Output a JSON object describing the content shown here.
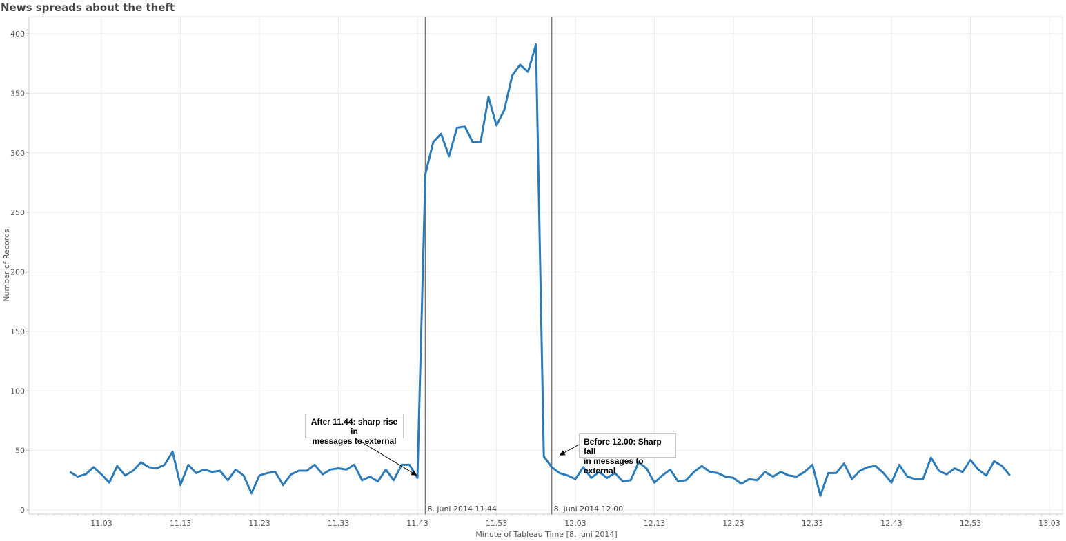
{
  "title": "News spreads about the theft",
  "chart_data": {
    "type": "line",
    "title": "News spreads about the theft",
    "xlabel": "Minute of Tableau Time [8. juni 2014]",
    "ylabel": "Number of Records",
    "ylim": [
      0,
      410
    ],
    "yticks": [
      0,
      50,
      100,
      150,
      200,
      250,
      300,
      350,
      400
    ],
    "xlim_minutes": [
      "10.55",
      "13.05"
    ],
    "xticks": [
      "11.03",
      "11.13",
      "11.23",
      "11.33",
      "11.43",
      "11.53",
      "12.03",
      "12.13",
      "12.23",
      "12.33",
      "12.43",
      "12.53",
      "13.03"
    ],
    "grid": true,
    "line_color": "#2b7bba",
    "x": [
      "10.59",
      "11.00",
      "11.01",
      "11.02",
      "11.03",
      "11.04",
      "11.05",
      "11.06",
      "11.07",
      "11.08",
      "11.09",
      "11.10",
      "11.11",
      "11.12",
      "11.13",
      "11.14",
      "11.15",
      "11.16",
      "11.17",
      "11.18",
      "11.19",
      "11.20",
      "11.21",
      "11.22",
      "11.23",
      "11.24",
      "11.25",
      "11.26",
      "11.27",
      "11.28",
      "11.29",
      "11.30",
      "11.31",
      "11.32",
      "11.33",
      "11.34",
      "11.35",
      "11.36",
      "11.37",
      "11.38",
      "11.39",
      "11.40",
      "11.41",
      "11.42",
      "11.43",
      "11.44",
      "11.45",
      "11.46",
      "11.47",
      "11.48",
      "11.49",
      "11.50",
      "11.51",
      "11.52",
      "11.53",
      "11.54",
      "11.55",
      "11.56",
      "11.57",
      "11.58",
      "11.59",
      "12.00",
      "12.01",
      "12.02",
      "12.03",
      "12.04",
      "12.05",
      "12.06",
      "12.07",
      "12.08",
      "12.09",
      "12.10",
      "12.11",
      "12.12",
      "12.13",
      "12.14",
      "12.15",
      "12.16",
      "12.17",
      "12.18",
      "12.19",
      "12.20",
      "12.21",
      "12.22",
      "12.23",
      "12.24",
      "12.25",
      "12.26",
      "12.27",
      "12.28",
      "12.29",
      "12.30",
      "12.31",
      "12.32",
      "12.33",
      "12.34",
      "12.35",
      "12.36",
      "12.37",
      "12.38",
      "12.39",
      "12.40",
      "12.41",
      "12.42",
      "12.43",
      "12.44",
      "12.45",
      "12.46",
      "12.47",
      "12.48",
      "12.49",
      "12.50",
      "12.51",
      "12.52",
      "12.53",
      "12.54",
      "12.55",
      "12.56",
      "12.57",
      "12.58"
    ],
    "series": [
      {
        "values": [
          32,
          28,
          30,
          36,
          30,
          23,
          37,
          29,
          33,
          40,
          36,
          35,
          38,
          49,
          21,
          38,
          31,
          34,
          32,
          33,
          25,
          34,
          29,
          14,
          29,
          31,
          32,
          21,
          30,
          33,
          33,
          38,
          30,
          34,
          35,
          34,
          38,
          25,
          28,
          24,
          34,
          25,
          38,
          38,
          27,
          282,
          309,
          316,
          297,
          321,
          322,
          309,
          309,
          347,
          323,
          336,
          365,
          374,
          368,
          391,
          45,
          36,
          31,
          29,
          26,
          36,
          27,
          32,
          27,
          31,
          24,
          25,
          40,
          35,
          23,
          29,
          34,
          24,
          25,
          32,
          37,
          32,
          31,
          28,
          27,
          22,
          26,
          25,
          32,
          28,
          32,
          29,
          28,
          32,
          38,
          12,
          31,
          31,
          39,
          26,
          33,
          36,
          37,
          31,
          23,
          38,
          28,
          26,
          26,
          44,
          33,
          30,
          35,
          32,
          42,
          34,
          29,
          41,
          37,
          29
        ]
      }
    ],
    "reference_lines": [
      {
        "x": "11.44",
        "label": "8. juni 2014 11.44"
      },
      {
        "x": "12.00",
        "label": "8. juni 2014 12.00"
      }
    ],
    "annotations": [
      {
        "lines": [
          "After 11.44: sharp rise in",
          "messages to external"
        ],
        "points_to": {
          "x": "11.44",
          "y": 27
        }
      },
      {
        "lines": [
          "Before 12.00: Sharp fall",
          "in messages to external"
        ],
        "points_to": {
          "x": "12.00",
          "y": 45
        }
      }
    ]
  }
}
